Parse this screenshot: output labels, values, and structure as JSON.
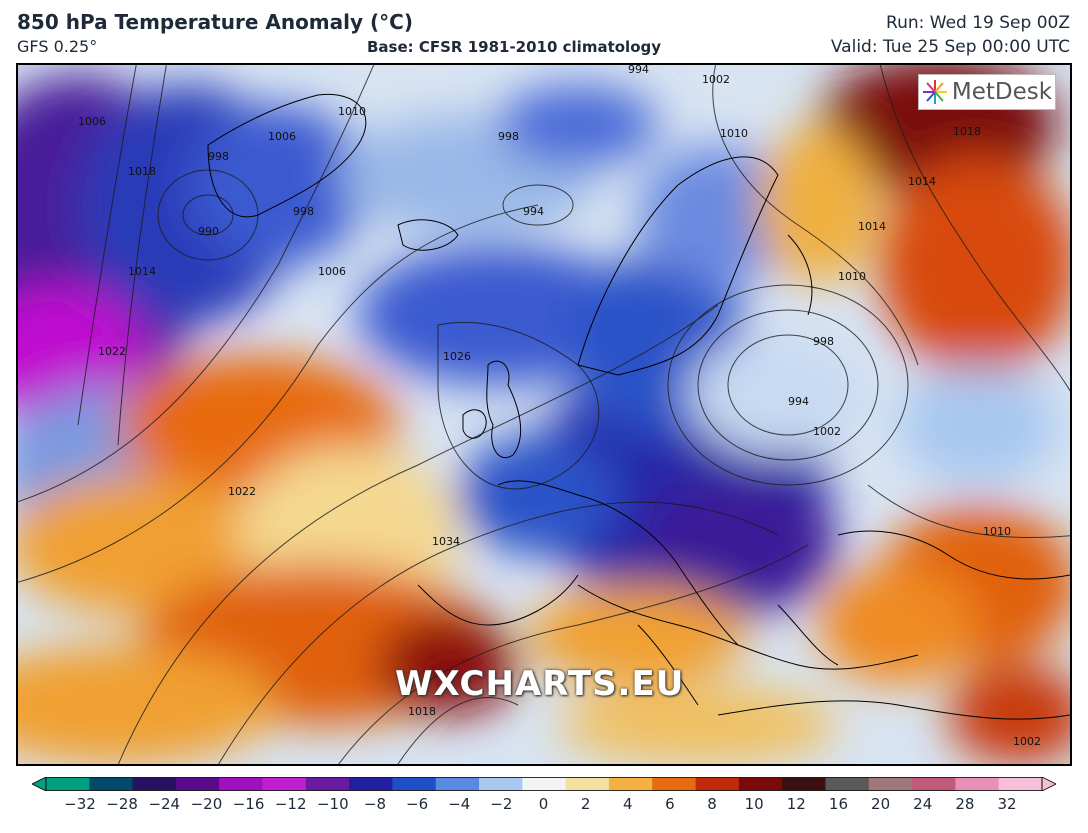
{
  "header": {
    "title": "850 hPa Temperature Anomaly (°C)",
    "model": "GFS 0.25°",
    "base": "Base: CFSR 1981-2010 climatology",
    "run": "Run: Wed 19 Sep 00Z",
    "valid": "Valid: Tue 25 Sep 00:00 UTC"
  },
  "logo": {
    "text": "MetDesk"
  },
  "watermark": "WXCHARTS.EU",
  "isobar_labels": [
    "994",
    "1002",
    "1010",
    "1010",
    "1006",
    "998",
    "998",
    "994",
    "1006",
    "1018",
    "1014",
    "1022",
    "990",
    "998",
    "1006",
    "1026",
    "1022",
    "1034",
    "1018",
    "1014",
    "1010",
    "998",
    "994",
    "1002",
    "1014",
    "1018",
    "1010",
    "1002"
  ],
  "colorbar": {
    "ticks": [
      "−32",
      "−28",
      "−24",
      "−20",
      "−16",
      "−12",
      "−10",
      "−8",
      "−6",
      "−4",
      "−2",
      "0",
      "2",
      "4",
      "6",
      "8",
      "10",
      "12",
      "16",
      "20",
      "24",
      "28",
      "32"
    ],
    "colors": [
      "#00a080",
      "#004a6a",
      "#2a1060",
      "#5a0a8a",
      "#a010c0",
      "#c020d0",
      "#6a1aa0",
      "#2020a0",
      "#1e4ec8",
      "#5a8ae0",
      "#a8c8f0",
      "#f0f4f4",
      "#f4e0a0",
      "#f4b040",
      "#e86a10",
      "#c02a0a",
      "#7a0a0a",
      "#3a1010",
      "#5a5a5a",
      "#a0787a",
      "#c05a78",
      "#e890b8",
      "#f8c0d8"
    ]
  }
}
